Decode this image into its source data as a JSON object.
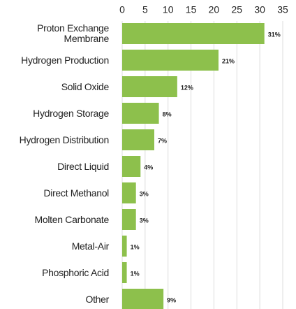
{
  "chart_data": {
    "type": "barh",
    "categories": [
      "Proton Exchange Membrane",
      "Hydrogen Production",
      "Solid Oxide",
      "Hydrogen Storage",
      "Hydrogen Distribution",
      "Direct Liquid",
      "Direct Methanol",
      "Molten Carbonate",
      "Metal-Air",
      "Phosphoric Acid",
      "Other"
    ],
    "values": [
      31,
      21,
      12,
      8,
      7,
      4,
      3,
      3,
      1,
      1,
      9
    ],
    "value_labels": [
      "31%",
      "21%",
      "12%",
      "8%",
      "7%",
      "4%",
      "3%",
      "3%",
      "1%",
      "1%",
      "9%"
    ],
    "color": "#8dc04c",
    "xlim": [
      0,
      35
    ],
    "xticks": [
      0,
      5,
      10,
      15,
      20,
      25,
      30,
      35
    ],
    "grid": true
  }
}
